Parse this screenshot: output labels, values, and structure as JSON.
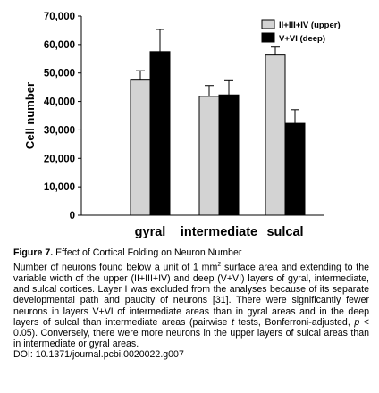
{
  "chart_data": {
    "type": "bar",
    "categories": [
      "gyral",
      "intermediate",
      "sulcal"
    ],
    "series": [
      {
        "name": "II+III+IV (upper)",
        "values": [
          47500,
          41800,
          56300
        ],
        "error": [
          3300,
          3800,
          2800
        ],
        "color": "#d3d3d3"
      },
      {
        "name": "V+VI (deep)",
        "values": [
          57500,
          42300,
          32300
        ],
        "error": [
          7800,
          5000,
          4800
        ],
        "color": "#000000"
      }
    ],
    "ylabel": "Cell number",
    "xlabel": "",
    "ylim": [
      0,
      70000
    ],
    "yticks": [
      0,
      10000,
      20000,
      30000,
      40000,
      50000,
      60000,
      70000
    ],
    "ytick_labels": [
      "0",
      "10,000",
      "20,000",
      "30,000",
      "40,000",
      "50,000",
      "60,000",
      "70,000"
    ],
    "legend_position": "top-right",
    "grid": false
  },
  "caption": {
    "figure_label": "Figure 7.",
    "figure_title": "Effect of Cortical Folding on Neuron Number",
    "text_before_sup": "Number of neurons found below a unit of 1 mm",
    "superscript": "2",
    "text_after_sup": " surface area and extending to the variable width of the upper (II+III+IV) and deep (V+VI) layers of gyral, intermediate, and sulcal cortices. Layer I was excluded from the analyses because of its separate developmental path and paucity of neurons [31]. There were significantly fewer neurons in layers V+VI of intermediate areas than in gyral areas and in the deep layers of sulcal than intermediate areas (pairwise ",
    "italic_t": "t",
    "text_mid": " tests, Bonferroni-adjusted, ",
    "italic_p": "p",
    "text_end": " < 0.05). Conversely, there were more neurons in the upper layers of sulcal areas than in intermediate or gyral areas.",
    "doi": "DOI: 10.1371/journal.pcbi.0020022.g007"
  }
}
